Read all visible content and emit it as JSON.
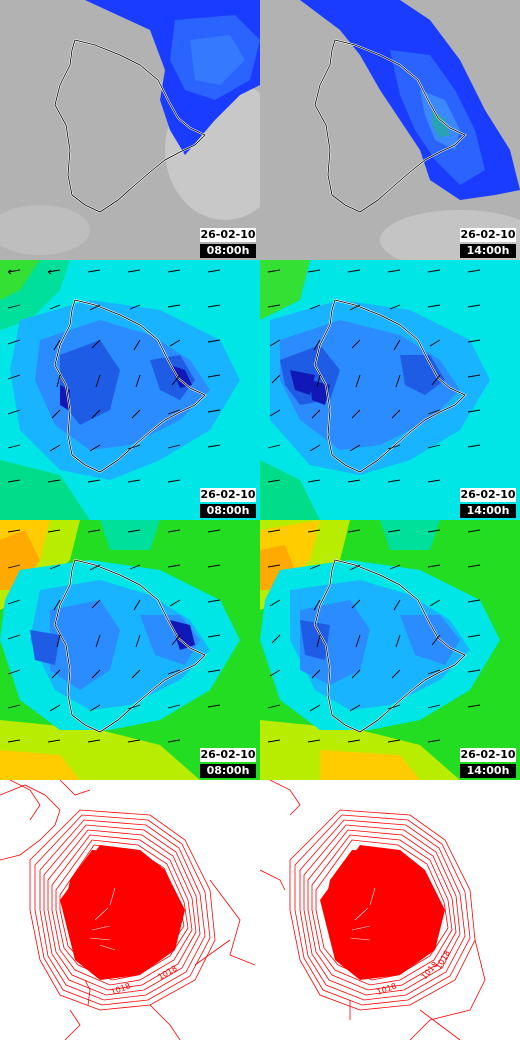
{
  "panels": [
    {
      "id": "rain-am",
      "layer": "precipitation",
      "date": "26-02-10",
      "time": "08:00h"
    },
    {
      "id": "rain-pm",
      "layer": "precipitation",
      "date": "26-02-10",
      "time": "14:00h"
    },
    {
      "id": "wind-am",
      "layer": "wind",
      "date": "26-02-10",
      "time": "08:00h"
    },
    {
      "id": "wind-pm",
      "layer": "wind",
      "date": "26-02-10",
      "time": "14:00h"
    },
    {
      "id": "temp-am",
      "layer": "temperature-wind",
      "date": "26-02-10",
      "time": "08:00h"
    },
    {
      "id": "temp-pm",
      "layer": "temperature-wind",
      "date": "26-02-10",
      "time": "14:00h"
    },
    {
      "id": "pressure-am",
      "layer": "pressure-contours",
      "labels": [
        "1018",
        "1018"
      ]
    },
    {
      "id": "pressure-pm",
      "layer": "pressure-contours",
      "labels": [
        "1018",
        "1018",
        "1018"
      ]
    }
  ],
  "colors": {
    "coast": "#ffffff",
    "cloud_grey": "#b4b4b4",
    "rain_blue": "#1a3cff",
    "contour_red": "#ff0000"
  }
}
